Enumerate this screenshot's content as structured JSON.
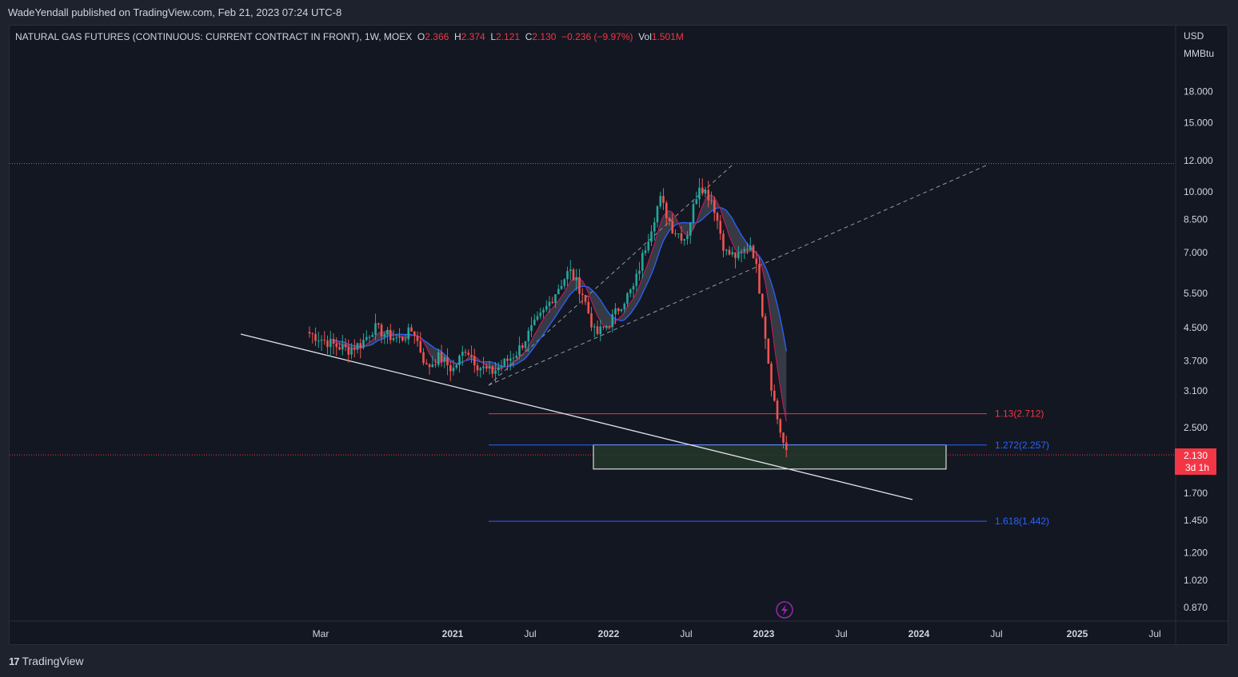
{
  "publisher": "WadeYendall published on TradingView.com, Feb 21, 2023 07:24 UTC-8",
  "symbol": {
    "name": "NATURAL GAS FUTURES (CONTINUOUS: CURRENT CONTRACT IN FRONT), 1W, MOEX",
    "o_label": "O",
    "o_value": "2.366",
    "h_label": "H",
    "h_value": "2.374",
    "l_label": "L",
    "l_value": "2.121",
    "c_label": "C",
    "c_value": "2.130",
    "change": "−0.236 (−9.97%)",
    "vol_label": "Vol",
    "vol_value": "1.501M"
  },
  "footer": {
    "logo_mark": "17",
    "logo_text": "TradingView"
  },
  "colors": {
    "background": "#131722",
    "up": "#26a69a",
    "down": "#ef5350",
    "fib_red": "#f23645",
    "fib_blue": "#2962ff",
    "ma_blue": "#2962ff",
    "ma_red": "#c2185b",
    "zone_fill": "#24382a"
  },
  "chart_data": {
    "type": "candlestick",
    "scale": "log",
    "currency": "USD",
    "unit": "MMBtu",
    "y_ticks": [
      "18.000",
      "15.000",
      "12.000",
      "10.000",
      "8.500",
      "7.000",
      "5.500",
      "4.500",
      "3.700",
      "3.100",
      "2.500",
      "1.700",
      "1.450",
      "1.200",
      "1.020",
      "0.870"
    ],
    "x_ticks": [
      "Mar",
      "2021",
      "Jul",
      "2022",
      "Jul",
      "2023",
      "Jul",
      "2024",
      "Jul",
      "2025",
      "Jul"
    ],
    "last_price": "2.130",
    "countdown": "3d 1h",
    "fib_levels": [
      {
        "ratio": "1.13",
        "price": 2.712,
        "label": "1.13(2.712)",
        "color": "red"
      },
      {
        "ratio": "1.272",
        "price": 2.257,
        "label": "1.272(2.257)",
        "color": "blue"
      },
      {
        "ratio": "1.618",
        "price": 1.442,
        "label": "1.618(1.442)",
        "color": "blue"
      }
    ],
    "target_zone": {
      "upper": 2.26,
      "lower": 1.96
    },
    "resistance_level": 11.8,
    "price_path": [
      [
        "2020-02-01",
        4.35
      ],
      [
        "2020-03-01",
        4.2
      ],
      [
        "2020-04-01",
        4.05
      ],
      [
        "2020-05-01",
        3.95
      ],
      [
        "2020-06-01",
        4.1
      ],
      [
        "2020-07-01",
        4.5
      ],
      [
        "2020-08-01",
        4.3
      ],
      [
        "2020-09-01",
        4.2
      ],
      [
        "2020-10-01",
        4.45
      ],
      [
        "2020-11-01",
        3.55
      ],
      [
        "2020-12-01",
        3.8
      ],
      [
        "2021-01-01",
        3.5
      ],
      [
        "2021-02-01",
        4.0
      ],
      [
        "2021-03-01",
        3.6
      ],
      [
        "2021-04-01",
        3.45
      ],
      [
        "2021-05-01",
        3.65
      ],
      [
        "2021-06-01",
        3.9
      ],
      [
        "2021-07-01",
        4.4
      ],
      [
        "2021-08-01",
        4.9
      ],
      [
        "2021-09-01",
        5.6
      ],
      [
        "2021-10-01",
        6.3
      ],
      [
        "2021-11-01",
        5.5
      ],
      [
        "2021-12-01",
        4.3
      ],
      [
        "2022-01-01",
        4.6
      ],
      [
        "2022-02-01",
        5.2
      ],
      [
        "2022-03-01",
        5.7
      ],
      [
        "2022-04-01",
        7.5
      ],
      [
        "2022-05-01",
        9.6
      ],
      [
        "2022-06-01",
        8.0
      ],
      [
        "2022-07-01",
        7.6
      ],
      [
        "2022-08-01",
        10.5
      ],
      [
        "2022-09-01",
        9.5
      ],
      [
        "2022-10-01",
        7.0
      ],
      [
        "2022-11-01",
        6.8
      ],
      [
        "2022-12-01",
        7.4
      ],
      [
        "2022-12-15",
        6.2
      ],
      [
        "2023-01-01",
        4.5
      ],
      [
        "2023-01-15",
        3.3
      ],
      [
        "2023-02-01",
        2.6
      ],
      [
        "2023-02-21",
        2.13
      ]
    ]
  }
}
